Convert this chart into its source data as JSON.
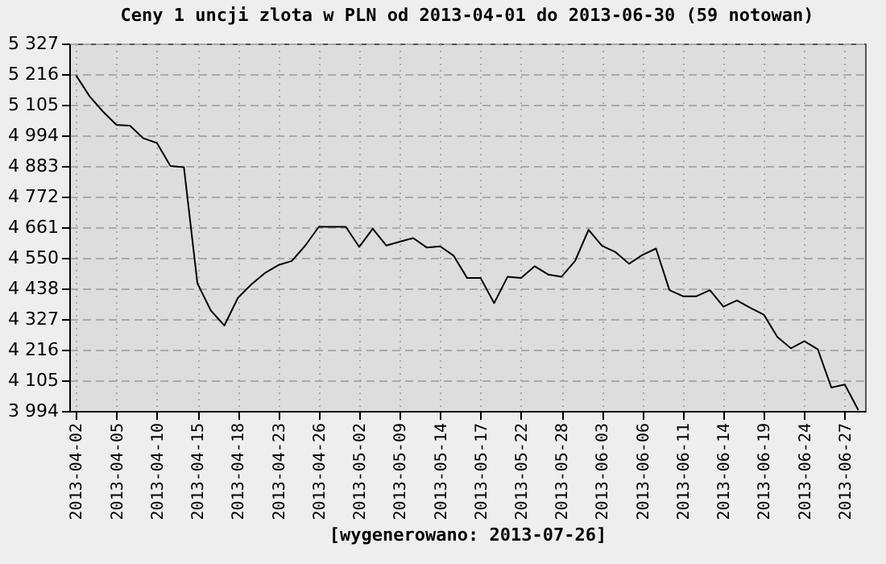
{
  "chart_data": {
    "type": "line",
    "title": "Ceny 1 uncji zlota w PLN od 2013-04-01 do 2013-06-30 (59 notowan)",
    "xlabel": "[wygenerowano: 2013-07-26]",
    "categories": [
      "2013-04-02",
      null,
      null,
      "2013-04-05",
      null,
      null,
      "2013-04-10",
      null,
      null,
      "2013-04-15",
      null,
      null,
      "2013-04-18",
      null,
      null,
      "2013-04-23",
      null,
      null,
      "2013-04-26",
      null,
      null,
      "2013-05-02",
      null,
      null,
      "2013-05-09",
      null,
      null,
      "2013-05-14",
      null,
      null,
      "2013-05-17",
      null,
      null,
      "2013-05-22",
      null,
      null,
      "2013-05-28",
      null,
      null,
      "2013-06-03",
      null,
      null,
      "2013-06-06",
      null,
      null,
      "2013-06-11",
      null,
      null,
      "2013-06-14",
      null,
      null,
      "2013-06-19",
      null,
      null,
      "2013-06-24",
      null,
      null,
      "2013-06-27",
      null
    ],
    "series": [
      {
        "color": "#000000",
        "values": [
          5212,
          5136,
          5080,
          5032,
          5029,
          4983,
          4966,
          4883,
          4878,
          4457,
          4358,
          4304,
          4404,
          4453,
          4494,
          4523,
          4538,
          4594,
          4662,
          4662,
          4662,
          4589,
          4655,
          4594,
          4608,
          4621,
          4587,
          4591,
          4557,
          4476,
          4476,
          4385,
          4481,
          4476,
          4519,
          4489,
          4481,
          4538,
          4651,
          4593,
          4570,
          4528,
          4560,
          4583,
          4432,
          4410,
          4410,
          4432,
          4372,
          4395,
          4368,
          4343,
          4262,
          4221,
          4247,
          4217,
          4079,
          4090,
          3997
        ]
      }
    ],
    "ylim": [
      3994,
      5327
    ],
    "yticks": [
      {
        "value": 3994,
        "label": "3 994"
      },
      {
        "value": 4105,
        "label": "4 105"
      },
      {
        "value": 4216,
        "label": "4 216"
      },
      {
        "value": 4327,
        "label": "4 327"
      },
      {
        "value": 4438,
        "label": "4 438"
      },
      {
        "value": 4550,
        "label": "4 550"
      },
      {
        "value": 4661,
        "label": "4 661"
      },
      {
        "value": 4772,
        "label": "4 772"
      },
      {
        "value": 4883,
        "label": "4 883"
      },
      {
        "value": 4994,
        "label": "4 994"
      },
      {
        "value": 5105,
        "label": "5 105"
      },
      {
        "value": 5216,
        "label": "5 216"
      },
      {
        "value": 5327,
        "label": "5 327"
      }
    ],
    "grid": true,
    "marker": "none",
    "line_style": "solid"
  }
}
